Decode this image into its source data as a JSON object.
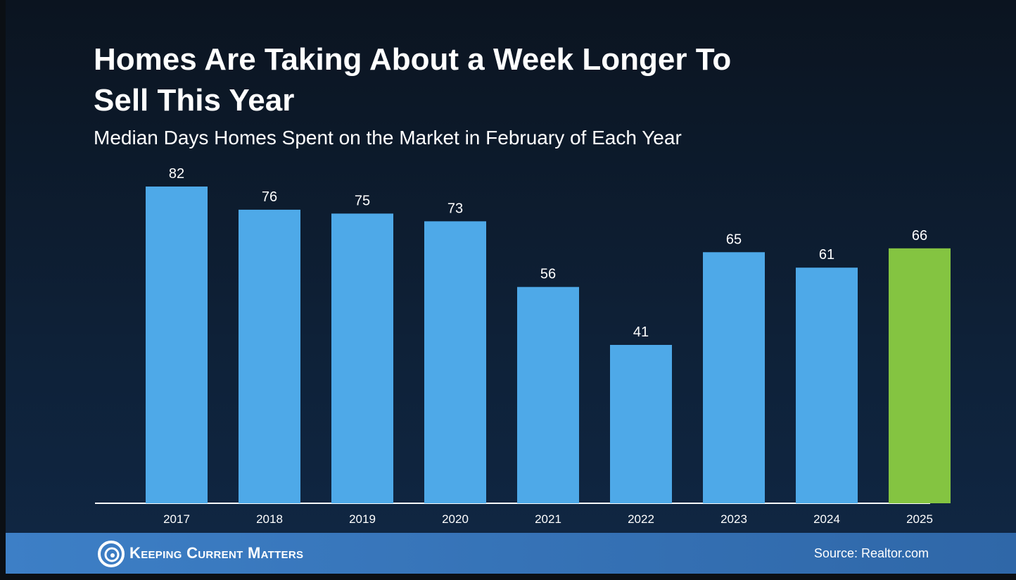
{
  "chart_data": {
    "type": "bar",
    "title": "Homes Are Taking About a Week Longer To Sell This Year",
    "subtitle": "Median Days Homes Spent on the Market in February of Each Year",
    "categories": [
      "2017",
      "2018",
      "2019",
      "2020",
      "2021",
      "2022",
      "2023",
      "2024",
      "2025"
    ],
    "values": [
      82,
      76,
      75,
      73,
      56,
      41,
      65,
      61,
      66
    ],
    "colors": [
      "#4ea9e8",
      "#4ea9e8",
      "#4ea9e8",
      "#4ea9e8",
      "#4ea9e8",
      "#4ea9e8",
      "#4ea9e8",
      "#4ea9e8",
      "#84c441"
    ],
    "brand": "Keeping Current Matters",
    "source": "Source: Realtor.com"
  }
}
